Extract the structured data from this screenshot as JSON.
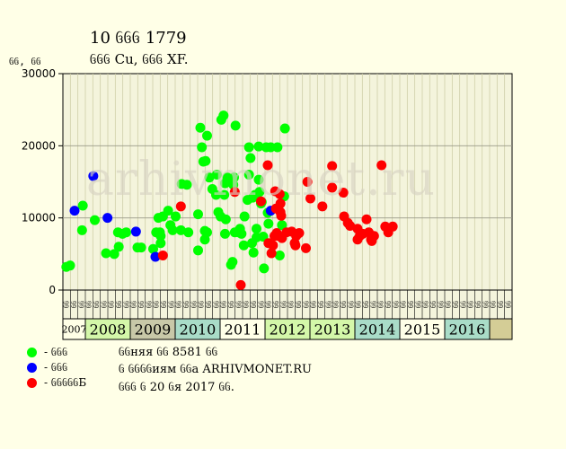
{
  "title": "10 ᦑᦑᦑ 1779",
  "subtitle": "ᦑᦑᦑ Cu, ᦑᦑᦑ XF.",
  "watermark": "arhivmonet.ru",
  "legend": [
    {
      "label": "- ᦑᦑᦑ",
      "color": "#00ff00"
    },
    {
      "label": "- ᦑᦑᦑ",
      "color": "#0000ff"
    },
    {
      "label": "- ᦑᦑᦑᦑᦑБ",
      "color": "#ff0000"
    }
  ],
  "footer": [
    "ᦑᦑняя ᦑᦑ 8581 ᦑᦑ",
    "ᦑ ᦑᦑᦑᦑиям ᦑᦑа ARHIVMONET.RU",
    "ᦑᦑᦑ ᦑ 20 ᦑя 2017 ᦑᦑ."
  ],
  "chart_data": {
    "type": "scatter",
    "ylabel": "ᦑᦑ, ᦑᦑ",
    "ylim": [
      0,
      30000
    ],
    "yticks": [
      0,
      10000,
      20000,
      30000
    ],
    "grid": true,
    "slots": [
      "ᦑᦑ",
      "ᦑᦑ",
      "ᦑᦑ",
      "ᦑᦑ",
      "ᦑᦑ",
      "ᦑᦑ",
      "ᦑᦑ",
      "ᦑᦑ",
      "ᦑᦑ",
      "ᦑᦑ",
      "ᦑᦑ",
      "ᦑᦑ",
      "ᦑᦑ",
      "ᦑᦑ",
      "ᦑᦑ",
      "ᦑᦑ",
      "ᦑᦑ",
      "ᦑᦑ",
      "ᦑᦑ",
      "ᦑᦑ",
      "ᦑᦑ",
      "ᦑᦑ",
      "ᦑᦑ",
      "ᦑᦑ",
      "ᦑᦑ",
      "ᦑᦑ",
      "ᦑᦑ",
      "ᦑᦑ",
      "ᦑᦑ",
      "ᦑᦑ",
      "ᦑᦑ",
      "ᦑᦑ",
      "ᦑᦑ",
      "ᦑᦑ",
      "ᦑᦑ",
      "ᦑᦑ",
      "ᦑᦑ",
      "ᦑᦑ",
      "ᦑᦑ",
      "ᦑᦑ",
      "ᦑᦑ",
      "ᦑᦑ",
      "ᦑᦑ",
      "ᦑᦑ",
      "ᦑᦑ",
      "ᦑᦑ",
      "ᦑᦑ",
      "ᦑᦑ",
      "ᦑᦑ",
      "ᦑᦑ",
      "ᦑᦑ",
      "ᦑᦑ",
      "ᦑᦑ",
      "ᦑᦑ",
      "ᦑᦑ",
      "ᦑᦑ",
      "ᦑᦑ",
      "ᦑᦑ",
      "ᦑᦑ",
      "ᦑᦑ"
    ],
    "years": [
      {
        "label": "2007",
        "start": 0,
        "span": 3,
        "color": "#ffffe7"
      },
      {
        "label": "2008",
        "start": 3,
        "span": 6,
        "color": "#d4f7a9"
      },
      {
        "label": "2009",
        "start": 9,
        "span": 6,
        "color": "#c8c8a8"
      },
      {
        "label": "2010",
        "start": 15,
        "span": 6,
        "color": "#a9dcc8"
      },
      {
        "label": "2011",
        "start": 21,
        "span": 6,
        "color": "#ffffe7"
      },
      {
        "label": "2012",
        "start": 27,
        "span": 6,
        "color": "#d4f7a9"
      },
      {
        "label": "2013",
        "start": 33,
        "span": 6,
        "color": "#d4f7a9"
      },
      {
        "label": "2014",
        "start": 39,
        "span": 6,
        "color": "#a9dcc8"
      },
      {
        "label": "2015",
        "start": 45,
        "span": 6,
        "color": "#ffffe7"
      },
      {
        "label": "2016",
        "start": 51,
        "span": 6,
        "color": "#a9dcc8"
      },
      {
        "label": "",
        "start": 57,
        "span": 3,
        "color": "#d4cd96"
      }
    ],
    "series": [
      {
        "type": "green",
        "color": "#00ff00",
        "points": [
          [
            0.2,
            3200
          ],
          [
            0.7,
            3400
          ],
          [
            2.3,
            8300
          ],
          [
            2.4,
            11700
          ],
          [
            4.0,
            9700
          ],
          [
            5.5,
            5100
          ],
          [
            6.6,
            5000
          ],
          [
            7.2,
            6000
          ],
          [
            7.1,
            8000
          ],
          [
            7.7,
            7800
          ],
          [
            8.2,
            8000
          ],
          [
            9.7,
            5900
          ],
          [
            10.2,
            5900
          ],
          [
            11.8,
            5700
          ],
          [
            12.2,
            8000
          ],
          [
            12.5,
            10000
          ],
          [
            12.7,
            8000
          ],
          [
            12.8,
            7500
          ],
          [
            12.8,
            6500
          ],
          [
            13.1,
            10200
          ],
          [
            13.8,
            11000
          ],
          [
            14.1,
            9000
          ],
          [
            14.4,
            8300
          ],
          [
            14.8,
            10200
          ],
          [
            15.5,
            8300
          ],
          [
            15.6,
            14700
          ],
          [
            16.3,
            14600
          ],
          [
            16.5,
            8000
          ],
          [
            17.8,
            10500
          ],
          [
            17.8,
            5500
          ],
          [
            18.1,
            22500
          ],
          [
            18.3,
            19800
          ],
          [
            18.5,
            17800
          ],
          [
            18.7,
            7000
          ],
          [
            18.7,
            8200
          ],
          [
            18.8,
            17900
          ],
          [
            19.0,
            21400
          ],
          [
            19.0,
            8000
          ],
          [
            19.3,
            15600
          ],
          [
            19.7,
            14000
          ],
          [
            20.2,
            13200
          ],
          [
            20.3,
            16000
          ],
          [
            20.5,
            10800
          ],
          [
            20.8,
            10200
          ],
          [
            20.9,
            23600
          ],
          [
            21.2,
            24200
          ],
          [
            21.3,
            13200
          ],
          [
            21.4,
            14800
          ],
          [
            21.4,
            7800
          ],
          [
            21.5,
            9800
          ],
          [
            21.7,
            15600
          ],
          [
            21.9,
            15400
          ],
          [
            22.2,
            3500
          ],
          [
            22.4,
            3900
          ],
          [
            22.5,
            14600
          ],
          [
            22.6,
            15600
          ],
          [
            22.8,
            22800
          ],
          [
            22.7,
            8000
          ],
          [
            23.2,
            8000
          ],
          [
            23.4,
            8500
          ],
          [
            23.6,
            7800
          ],
          [
            23.9,
            6200
          ],
          [
            24.0,
            10200
          ],
          [
            24.4,
            12500
          ],
          [
            24.6,
            16000
          ],
          [
            24.6,
            19800
          ],
          [
            24.8,
            18300
          ],
          [
            25.0,
            6500
          ],
          [
            25.1,
            12800
          ],
          [
            25.2,
            5200
          ],
          [
            25.4,
            13200
          ],
          [
            25.6,
            8500
          ],
          [
            25.6,
            7300
          ],
          [
            25.9,
            15300
          ],
          [
            25.9,
            19900
          ],
          [
            26.0,
            13600
          ],
          [
            26.2,
            12000
          ],
          [
            26.3,
            12200
          ],
          [
            26.5,
            7400
          ],
          [
            26.6,
            3000
          ],
          [
            26.9,
            19800
          ],
          [
            27.1,
            10700
          ],
          [
            27.2,
            9200
          ],
          [
            27.5,
            19800
          ],
          [
            28.4,
            19800
          ],
          [
            28.7,
            4800
          ],
          [
            29.0,
            9000
          ],
          [
            29.3,
            13000
          ],
          [
            29.4,
            22400
          ]
        ]
      },
      {
        "type": "blue",
        "color": "#0000ff",
        "points": [
          [
            1.3,
            11000
          ],
          [
            3.8,
            15800
          ],
          [
            5.7,
            10000
          ],
          [
            9.5,
            8100
          ],
          [
            12.1,
            4600
          ],
          [
            27.5,
            11000
          ]
        ]
      },
      {
        "type": "red",
        "color": "#ff0000",
        "points": [
          [
            13.1,
            4800
          ],
          [
            15.5,
            11600
          ],
          [
            22.7,
            13600
          ],
          [
            23.5,
            700
          ],
          [
            26.2,
            12300
          ],
          [
            27.1,
            17300
          ],
          [
            27.2,
            6500
          ],
          [
            27.6,
            5100
          ],
          [
            27.8,
            6200
          ],
          [
            28.0,
            7500
          ],
          [
            28.1,
            13700
          ],
          [
            28.2,
            11300
          ],
          [
            28.3,
            7900
          ],
          [
            28.5,
            7500
          ],
          [
            28.7,
            13300
          ],
          [
            28.8,
            12000
          ],
          [
            28.8,
            10800
          ],
          [
            28.9,
            10300
          ],
          [
            29.0,
            7200
          ],
          [
            29.6,
            8000
          ],
          [
            30.3,
            8100
          ],
          [
            30.7,
            6500
          ],
          [
            30.8,
            6200
          ],
          [
            30.9,
            7500
          ],
          [
            31.3,
            7900
          ],
          [
            32.2,
            5800
          ],
          [
            32.4,
            15000
          ],
          [
            32.8,
            12700
          ],
          [
            34.4,
            11600
          ],
          [
            35.7,
            17200
          ],
          [
            35.7,
            14200
          ],
          [
            37.2,
            13500
          ],
          [
            37.3,
            10200
          ],
          [
            37.8,
            9300
          ],
          [
            38.1,
            8900
          ],
          [
            39.1,
            8500
          ],
          [
            39.1,
            7000
          ],
          [
            39.4,
            7500
          ],
          [
            39.8,
            7800
          ],
          [
            40.3,
            9800
          ],
          [
            40.6,
            8000
          ],
          [
            40.9,
            7000
          ],
          [
            41.0,
            6800
          ],
          [
            41.3,
            7500
          ],
          [
            42.3,
            17300
          ],
          [
            42.8,
            8800
          ],
          [
            43.2,
            8000
          ],
          [
            43.8,
            8800
          ]
        ]
      }
    ]
  }
}
